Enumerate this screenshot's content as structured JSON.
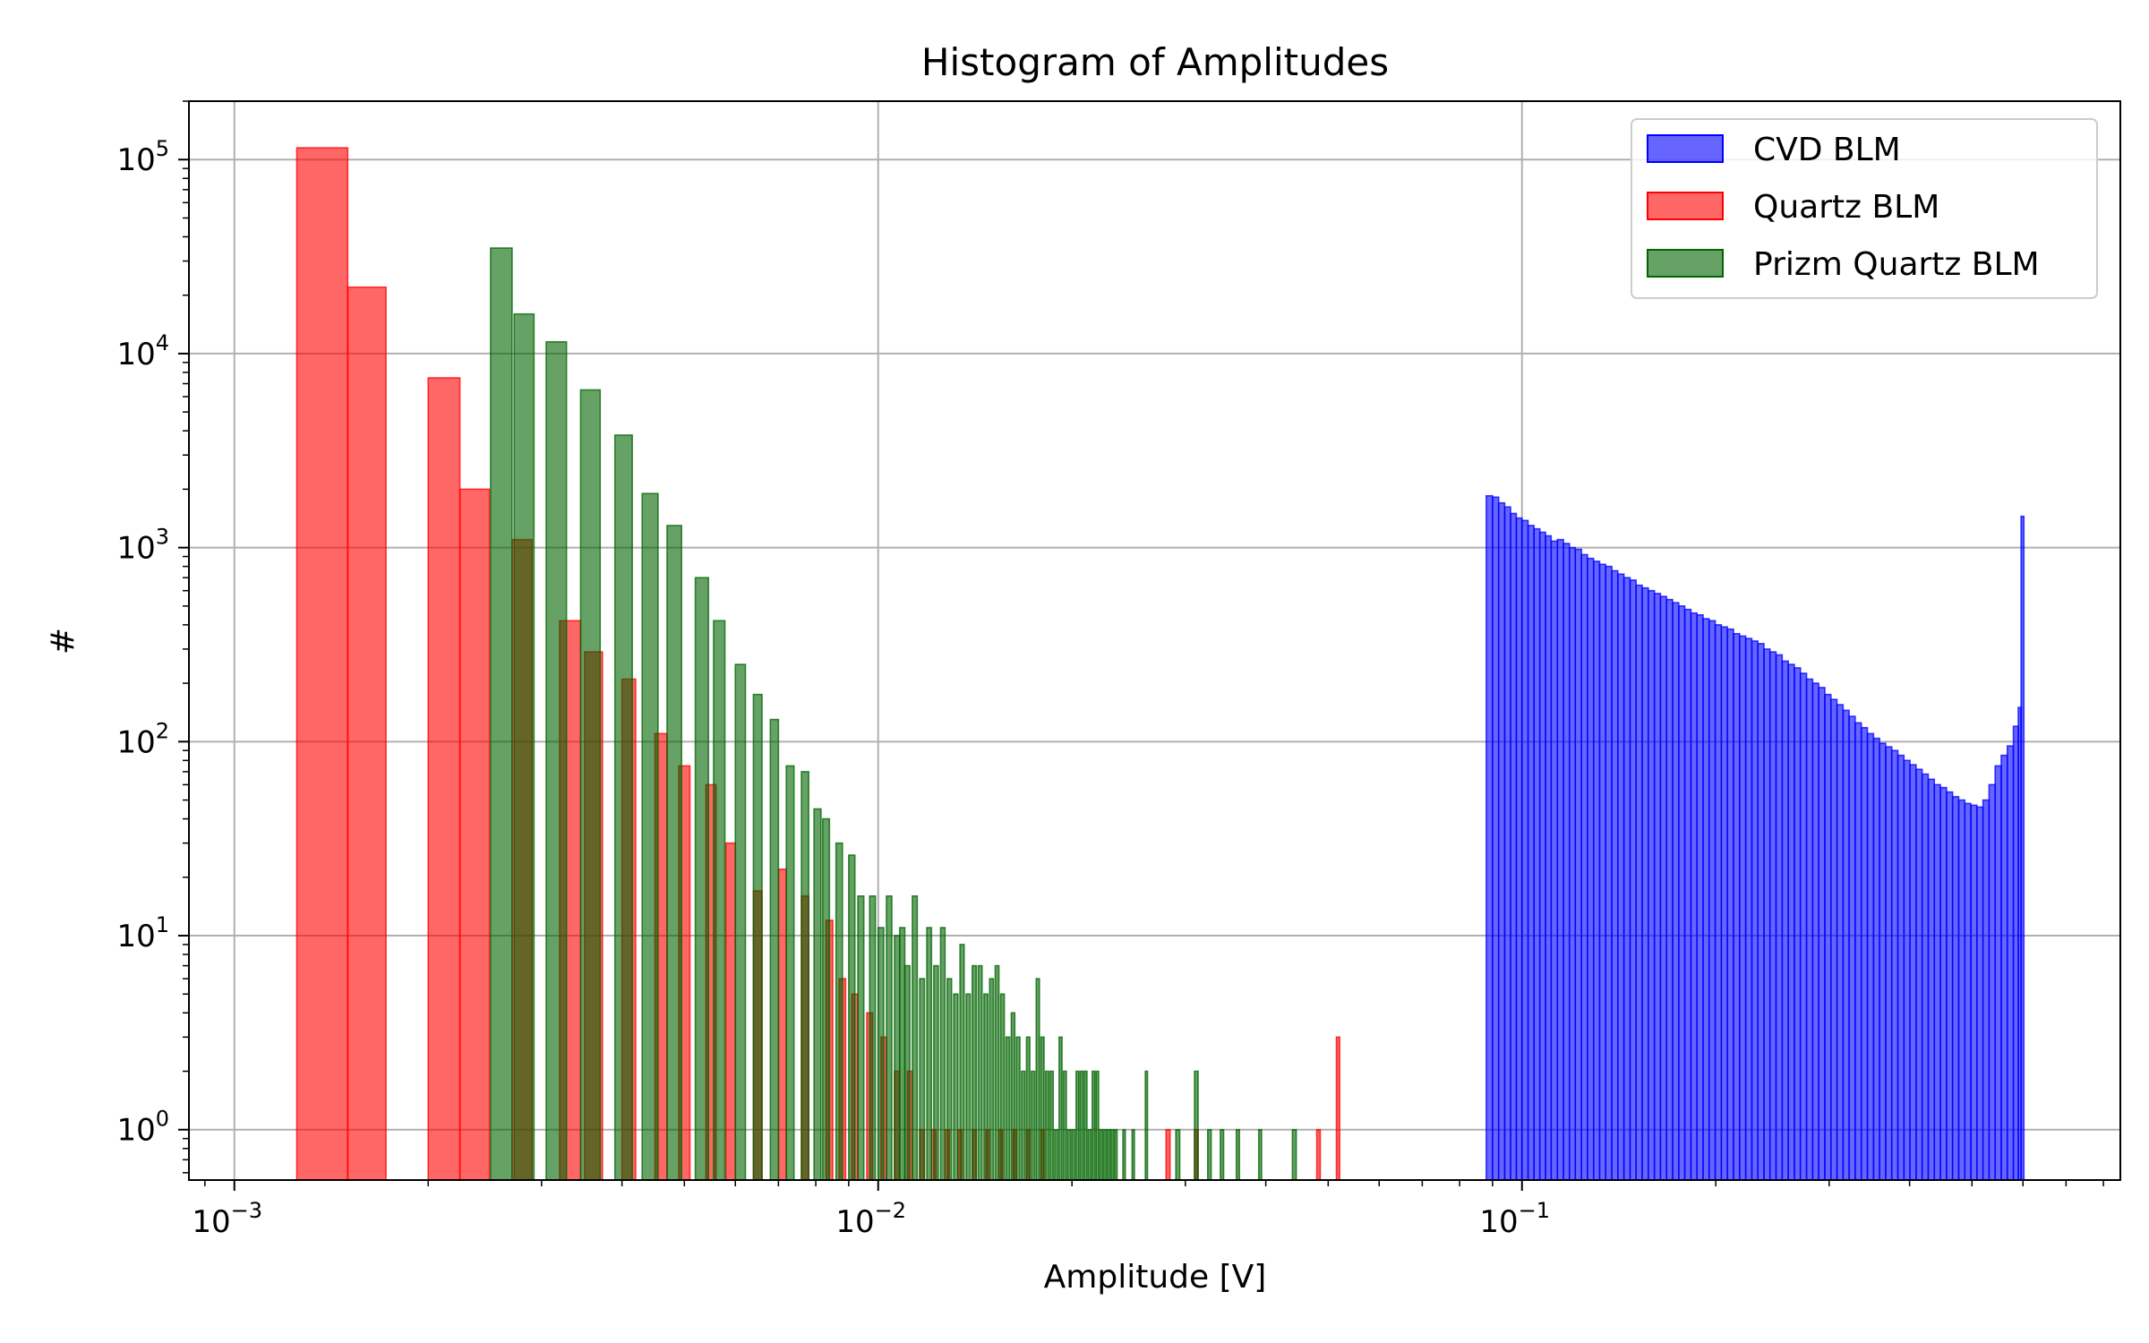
{
  "chart_data": {
    "type": "bar",
    "title": "Histogram of Amplitudes",
    "xlabel": "Amplitude [V]",
    "ylabel": "#",
    "x_scale": "log",
    "y_scale": "log",
    "xlim": [
      0.00085,
      0.85
    ],
    "ylim": [
      0.55,
      200000
    ],
    "grid": true,
    "legend_placement": "top-right",
    "x_ticks": [
      {
        "value": 0.001,
        "base": "10",
        "exp": "−3"
      },
      {
        "value": 0.01,
        "base": "10",
        "exp": "−2"
      },
      {
        "value": 0.1,
        "base": "10",
        "exp": "−1"
      }
    ],
    "y_ticks": [
      {
        "value": 1,
        "base": "10",
        "exp": "0"
      },
      {
        "value": 10,
        "base": "10",
        "exp": "1"
      },
      {
        "value": 100,
        "base": "10",
        "exp": "2"
      },
      {
        "value": 1000,
        "base": "10",
        "exp": "3"
      },
      {
        "value": 10000,
        "base": "10",
        "exp": "4"
      },
      {
        "value": 100000,
        "base": "10",
        "exp": "5"
      }
    ],
    "series": [
      {
        "name": "CVD BLM",
        "color": "#0000ff",
        "alpha": 0.6,
        "bins": [
          [
            0.088,
            0.09,
            1850
          ],
          [
            0.09,
            0.092,
            1820
          ],
          [
            0.092,
            0.094,
            1700
          ],
          [
            0.094,
            0.096,
            1620
          ],
          [
            0.096,
            0.098,
            1500
          ],
          [
            0.098,
            0.1,
            1420
          ],
          [
            0.1,
            0.1022,
            1380
          ],
          [
            0.1022,
            0.1044,
            1300
          ],
          [
            0.1044,
            0.1066,
            1250
          ],
          [
            0.1066,
            0.1088,
            1200
          ],
          [
            0.1088,
            0.111,
            1150
          ],
          [
            0.111,
            0.1135,
            1080
          ],
          [
            0.1135,
            0.116,
            1100
          ],
          [
            0.116,
            0.1185,
            1050
          ],
          [
            0.1185,
            0.121,
            1000
          ],
          [
            0.121,
            0.1237,
            980
          ],
          [
            0.1237,
            0.1264,
            920
          ],
          [
            0.1264,
            0.1292,
            880
          ],
          [
            0.1292,
            0.132,
            850
          ],
          [
            0.132,
            0.1349,
            820
          ],
          [
            0.1349,
            0.1379,
            800
          ],
          [
            0.1379,
            0.1409,
            760
          ],
          [
            0.1409,
            0.144,
            730
          ],
          [
            0.144,
            0.1472,
            700
          ],
          [
            0.1472,
            0.1504,
            680
          ],
          [
            0.1504,
            0.1537,
            640
          ],
          [
            0.1537,
            0.1571,
            620
          ],
          [
            0.1571,
            0.1606,
            600
          ],
          [
            0.1606,
            0.1641,
            580
          ],
          [
            0.1641,
            0.1677,
            560
          ],
          [
            0.1677,
            0.1714,
            540
          ],
          [
            0.1714,
            0.1752,
            520
          ],
          [
            0.1752,
            0.179,
            500
          ],
          [
            0.179,
            0.183,
            480
          ],
          [
            0.183,
            0.187,
            460
          ],
          [
            0.187,
            0.1911,
            450
          ],
          [
            0.1911,
            0.1953,
            430
          ],
          [
            0.1953,
            0.1996,
            420
          ],
          [
            0.1996,
            0.204,
            400
          ],
          [
            0.204,
            0.2085,
            390
          ],
          [
            0.2085,
            0.2131,
            380
          ],
          [
            0.2131,
            0.2178,
            360
          ],
          [
            0.2178,
            0.2226,
            350
          ],
          [
            0.2226,
            0.2275,
            340
          ],
          [
            0.2275,
            0.2325,
            330
          ],
          [
            0.2325,
            0.2376,
            320
          ],
          [
            0.2376,
            0.2428,
            300
          ],
          [
            0.2428,
            0.2481,
            290
          ],
          [
            0.2481,
            0.2536,
            280
          ],
          [
            0.2536,
            0.2592,
            260
          ],
          [
            0.2592,
            0.2649,
            250
          ],
          [
            0.2649,
            0.2707,
            240
          ],
          [
            0.2707,
            0.2767,
            225
          ],
          [
            0.2767,
            0.2828,
            210
          ],
          [
            0.2828,
            0.289,
            200
          ],
          [
            0.289,
            0.2954,
            190
          ],
          [
            0.2954,
            0.3019,
            175
          ],
          [
            0.3019,
            0.3085,
            165
          ],
          [
            0.3085,
            0.3153,
            155
          ],
          [
            0.3153,
            0.3222,
            145
          ],
          [
            0.3222,
            0.3293,
            135
          ],
          [
            0.3293,
            0.3366,
            125
          ],
          [
            0.3366,
            0.344,
            118
          ],
          [
            0.344,
            0.3516,
            110
          ],
          [
            0.3516,
            0.3593,
            104
          ],
          [
            0.3593,
            0.3672,
            98
          ],
          [
            0.3672,
            0.3753,
            94
          ],
          [
            0.3753,
            0.3836,
            90
          ],
          [
            0.3836,
            0.392,
            85
          ],
          [
            0.392,
            0.4006,
            80
          ],
          [
            0.4006,
            0.4094,
            76
          ],
          [
            0.4094,
            0.4184,
            72
          ],
          [
            0.4184,
            0.4276,
            68
          ],
          [
            0.4276,
            0.437,
            64
          ],
          [
            0.437,
            0.4466,
            60
          ],
          [
            0.4466,
            0.4565,
            58
          ],
          [
            0.4565,
            0.4665,
            55
          ],
          [
            0.4665,
            0.4768,
            52
          ],
          [
            0.4768,
            0.4873,
            50
          ],
          [
            0.4873,
            0.498,
            48
          ],
          [
            0.498,
            0.5089,
            47
          ],
          [
            0.5089,
            0.5201,
            46
          ],
          [
            0.5201,
            0.5315,
            50
          ],
          [
            0.5315,
            0.5432,
            60
          ],
          [
            0.5432,
            0.5551,
            75
          ],
          [
            0.5551,
            0.5673,
            85
          ],
          [
            0.5673,
            0.5798,
            95
          ],
          [
            0.5798,
            0.59,
            120
          ],
          [
            0.59,
            0.596,
            150
          ],
          [
            0.596,
            0.602,
            1450
          ]
        ]
      },
      {
        "name": "Quartz BLM",
        "color": "#ff0000",
        "alpha": 0.6,
        "bins": [
          [
            0.00125,
            0.0015,
            115000
          ],
          [
            0.0015,
            0.00172,
            22000
          ],
          [
            0.002,
            0.00224,
            7500
          ],
          [
            0.00224,
            0.00249,
            2000
          ],
          [
            0.0027,
            0.0029,
            1100
          ],
          [
            0.0032,
            0.00345,
            420
          ],
          [
            0.0035,
            0.00373,
            290
          ],
          [
            0.004,
            0.0042,
            210
          ],
          [
            0.0045,
            0.0047,
            110
          ],
          [
            0.0049,
            0.0051,
            75
          ],
          [
            0.0054,
            0.0056,
            60
          ],
          [
            0.0058,
            0.006,
            30
          ],
          [
            0.0064,
            0.0066,
            17
          ],
          [
            0.007,
            0.0072,
            22
          ],
          [
            0.0076,
            0.0078,
            16
          ],
          [
            0.0083,
            0.0085,
            12
          ],
          [
            0.0087,
            0.0089,
            6
          ],
          [
            0.0091,
            0.0093,
            5
          ],
          [
            0.0096,
            0.0098,
            4
          ],
          [
            0.0101,
            0.0103,
            3
          ],
          [
            0.0106,
            0.0108,
            2
          ],
          [
            0.0111,
            0.0113,
            2
          ],
          [
            0.0116,
            0.0118,
            1
          ],
          [
            0.0121,
            0.0123,
            1
          ],
          [
            0.0127,
            0.0129,
            1
          ],
          [
            0.0133,
            0.0135,
            1
          ],
          [
            0.014,
            0.0142,
            1
          ],
          [
            0.0147,
            0.0149,
            1
          ],
          [
            0.0154,
            0.0156,
            1
          ],
          [
            0.0162,
            0.0164,
            1
          ],
          [
            0.017,
            0.0172,
            1
          ],
          [
            0.0179,
            0.0181,
            1
          ],
          [
            0.028,
            0.0284,
            1
          ],
          [
            0.031,
            0.0314,
            1
          ],
          [
            0.048,
            0.0486,
            1
          ],
          [
            0.0515,
            0.0521,
            3
          ]
        ]
      },
      {
        "name": "Prizm Quartz BLM",
        "color": "#006400",
        "alpha": 0.6,
        "bins": [
          [
            0.0025,
            0.0027,
            35000
          ],
          [
            0.00272,
            0.00292,
            16000
          ],
          [
            0.00305,
            0.00328,
            11500
          ],
          [
            0.00345,
            0.0037,
            6500
          ],
          [
            0.0039,
            0.00415,
            3800
          ],
          [
            0.0043,
            0.00455,
            1900
          ],
          [
            0.0047,
            0.00495,
            1300
          ],
          [
            0.0052,
            0.00545,
            700
          ],
          [
            0.00555,
            0.00578,
            420
          ],
          [
            0.006,
            0.00622,
            250
          ],
          [
            0.0064,
            0.0066,
            175
          ],
          [
            0.0068,
            0.007,
            130
          ],
          [
            0.0072,
            0.0074,
            75
          ],
          [
            0.0076,
            0.0078,
            70
          ],
          [
            0.00795,
            0.00815,
            45
          ],
          [
            0.0082,
            0.0084,
            40
          ],
          [
            0.0086,
            0.0088,
            30
          ],
          [
            0.009,
            0.0092,
            26
          ],
          [
            0.0093,
            0.0095,
            16
          ],
          [
            0.0097,
            0.0099,
            16
          ],
          [
            0.01,
            0.0102,
            11
          ],
          [
            0.0103,
            0.0105,
            16
          ],
          [
            0.0106,
            0.0108,
            10
          ],
          [
            0.0108,
            0.011,
            11
          ],
          [
            0.011,
            0.0112,
            7
          ],
          [
            0.0113,
            0.0115,
            16
          ],
          [
            0.0116,
            0.0118,
            6
          ],
          [
            0.0119,
            0.0121,
            11
          ],
          [
            0.0122,
            0.0124,
            7
          ],
          [
            0.0125,
            0.0127,
            11
          ],
          [
            0.0128,
            0.013,
            6
          ],
          [
            0.0131,
            0.0133,
            5
          ],
          [
            0.0134,
            0.0136,
            9
          ],
          [
            0.0137,
            0.0139,
            5
          ],
          [
            0.014,
            0.0142,
            7
          ],
          [
            0.0143,
            0.0145,
            7
          ],
          [
            0.0146,
            0.0148,
            5
          ],
          [
            0.0149,
            0.0151,
            6
          ],
          [
            0.0152,
            0.0154,
            7
          ],
          [
            0.0155,
            0.0157,
            5
          ],
          [
            0.0158,
            0.016,
            3
          ],
          [
            0.0161,
            0.0163,
            4
          ],
          [
            0.0164,
            0.0166,
            3
          ],
          [
            0.0167,
            0.0169,
            2
          ],
          [
            0.017,
            0.0172,
            3
          ],
          [
            0.0173,
            0.0175,
            2
          ],
          [
            0.0176,
            0.0178,
            6
          ],
          [
            0.0179,
            0.0181,
            3
          ],
          [
            0.0182,
            0.0184,
            2
          ],
          [
            0.0185,
            0.0187,
            2
          ],
          [
            0.0188,
            0.019,
            1
          ],
          [
            0.0191,
            0.0193,
            3
          ],
          [
            0.0194,
            0.0196,
            2
          ],
          [
            0.0197,
            0.0199,
            1
          ],
          [
            0.02,
            0.0202,
            1
          ],
          [
            0.0203,
            0.0205,
            2
          ],
          [
            0.0206,
            0.0208,
            2
          ],
          [
            0.0209,
            0.0211,
            2
          ],
          [
            0.0212,
            0.0214,
            1
          ],
          [
            0.0215,
            0.0217,
            2
          ],
          [
            0.0218,
            0.022,
            2
          ],
          [
            0.0221,
            0.0223,
            1
          ],
          [
            0.0224,
            0.0226,
            1
          ],
          [
            0.0227,
            0.0229,
            1
          ],
          [
            0.023,
            0.0232,
            1
          ],
          [
            0.0233,
            0.0235,
            1
          ],
          [
            0.024,
            0.0242,
            1
          ],
          [
            0.0248,
            0.025,
            1
          ],
          [
            0.026,
            0.0262,
            2
          ],
          [
            0.029,
            0.0294,
            1
          ],
          [
            0.031,
            0.0314,
            2
          ],
          [
            0.0325,
            0.0329,
            1
          ],
          [
            0.034,
            0.0344,
            1
          ],
          [
            0.036,
            0.0364,
            1
          ],
          [
            0.039,
            0.0394,
            1
          ],
          [
            0.044,
            0.0446,
            1
          ]
        ]
      }
    ]
  }
}
